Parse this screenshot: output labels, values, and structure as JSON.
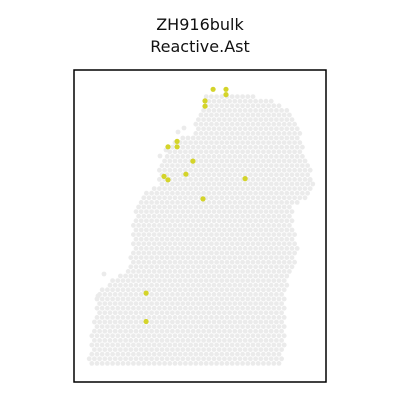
{
  "chart_data": {
    "type": "scatter",
    "title": [
      "ZH916bulk",
      "Reactive.Ast"
    ],
    "xlabel": "",
    "ylabel": "",
    "xlim": [
      0,
      100
    ],
    "ylim": [
      0,
      100
    ],
    "grid": false,
    "legend": "none",
    "background_spot_color": "#ebebeb",
    "highlight_color": "#d4d42a",
    "highlight_points": [
      {
        "x": 55.2,
        "y": 93.8
      },
      {
        "x": 60.3,
        "y": 93.8
      },
      {
        "x": 60.3,
        "y": 92.1
      },
      {
        "x": 52.0,
        "y": 90.1
      },
      {
        "x": 52.0,
        "y": 88.4
      },
      {
        "x": 40.9,
        "y": 77.1
      },
      {
        "x": 40.9,
        "y": 75.4
      },
      {
        "x": 37.3,
        "y": 75.4
      },
      {
        "x": 47.2,
        "y": 70.8
      },
      {
        "x": 44.4,
        "y": 66.6
      },
      {
        "x": 35.7,
        "y": 65.9
      },
      {
        "x": 37.3,
        "y": 64.8
      },
      {
        "x": 67.9,
        "y": 65.2
      },
      {
        "x": 51.2,
        "y": 58.7
      },
      {
        "x": 28.6,
        "y": 28.5
      },
      {
        "x": 28.6,
        "y": 19.4
      }
    ]
  }
}
